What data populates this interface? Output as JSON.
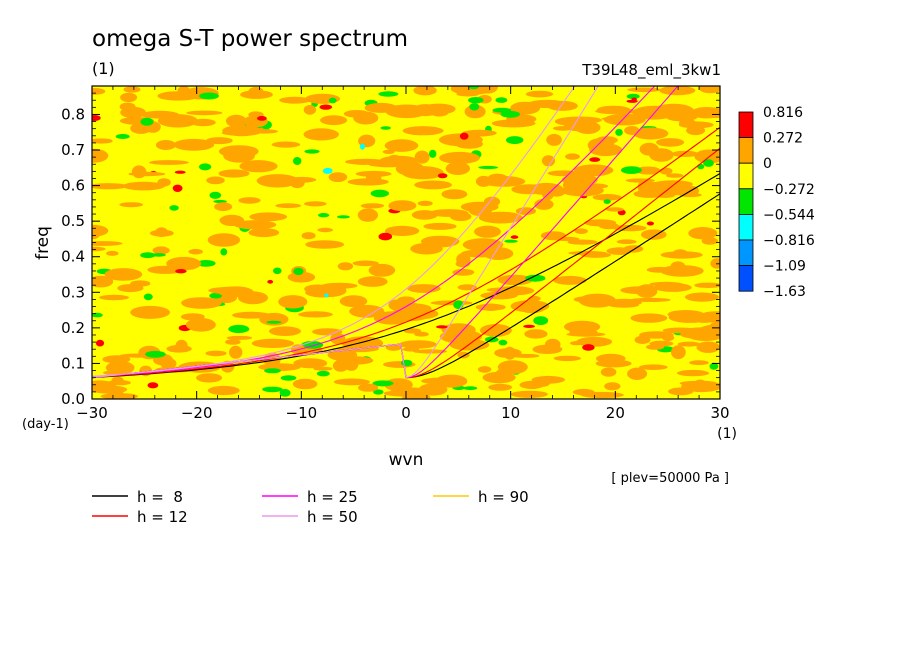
{
  "chart_data": {
    "type": "heatmap",
    "title": "omega S-T power spectrum",
    "subtitle": "(1)",
    "run_label": "T39L48_eml_3kw1",
    "xlabel": "wvn",
    "xunit": "(1)",
    "ylabel": "freq",
    "yunit": "(day-1)",
    "level_note": "[ plev=50000 Pa ]",
    "xlim": [
      -30,
      30
    ],
    "ylim": [
      0,
      0.88
    ],
    "xticks": [
      "−30",
      "−20",
      "−10",
      "0",
      "10",
      "20",
      "30"
    ],
    "xtick_values": [
      -30,
      -20,
      -10,
      0,
      10,
      20,
      30
    ],
    "yticks": [
      "0.0",
      "0.1",
      "0.2",
      "0.3",
      "0.4",
      "0.5",
      "0.6",
      "0.7",
      "0.8"
    ],
    "ytick_values": [
      0,
      0.1,
      0.2,
      0.3,
      0.4,
      0.5,
      0.6,
      0.7,
      0.8
    ],
    "colorbar": {
      "labels": [
        "0.816",
        "0.272",
        "0",
        "−0.272",
        "−0.544",
        "−0.816",
        "−1.09",
        "−1.63"
      ],
      "colors": [
        "#ff0000",
        "#ffa500",
        "#ffff00",
        "#00e600",
        "#00ffff",
        "#0096ff",
        "#0050ff"
      ]
    },
    "field_dominant_colors": [
      "#ffff00",
      "#ffa500"
    ],
    "dispersion_curves": [
      {
        "label": "h =  8",
        "color": "#000000",
        "family": "kelvin"
      },
      {
        "label": "h =  8",
        "color": "#000000",
        "family": "rossby-gravity"
      },
      {
        "label": "h = 12",
        "color": "#ff0000",
        "family": "kelvin"
      },
      {
        "label": "h = 12",
        "color": "#ff0000",
        "family": "rossby-gravity"
      },
      {
        "label": "h = 25",
        "color": "#ff00ff",
        "family": "kelvin"
      },
      {
        "label": "h = 25",
        "color": "#ff00ff",
        "family": "rossby-gravity"
      },
      {
        "label": "h = 50",
        "color": "#ee99ee",
        "family": "kelvin"
      },
      {
        "label": "h = 50",
        "color": "#ee99ee",
        "family": "rossby-gravity"
      }
    ],
    "legend": [
      {
        "label": "h =  8",
        "color": "#000000"
      },
      {
        "label": "h = 12",
        "color": "#ff0000"
      },
      {
        "label": "h = 25",
        "color": "#ff00ff"
      },
      {
        "label": "h = 50",
        "color": "#ee99ee"
      },
      {
        "label": "h = 90",
        "color": "#ffcc00"
      }
    ],
    "legend_placement": "bottom",
    "grid": false
  }
}
